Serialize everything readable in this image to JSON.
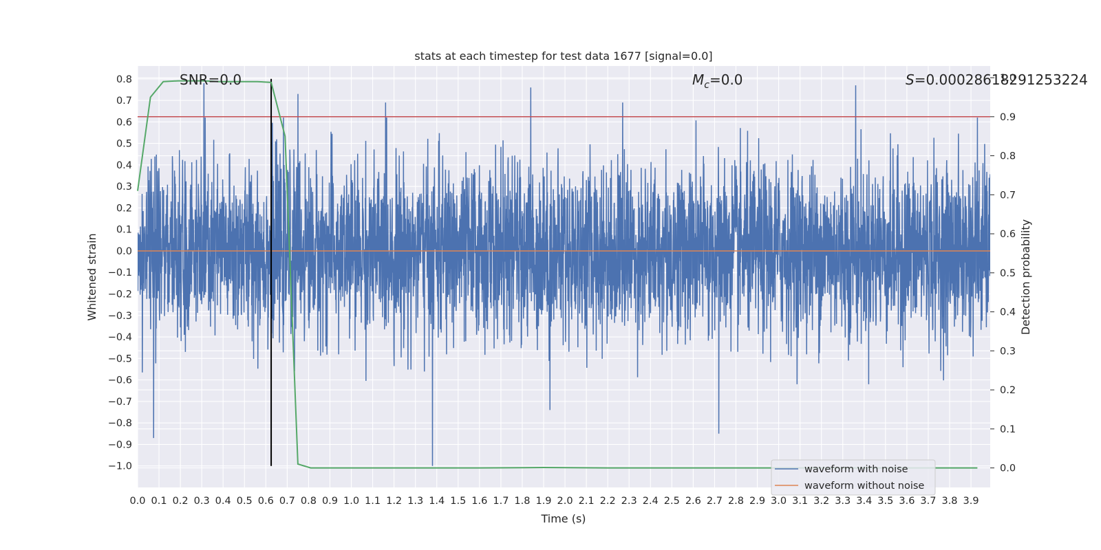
{
  "chart_data": {
    "type": "line",
    "title": "stats at each timestep for test data 1677 [signal=0.0]",
    "xlabel": "Time (s)",
    "ylabel_left": "Whitened strain",
    "ylabel_right": "Detection probability",
    "xlim": [
      0.0,
      3.99
    ],
    "ylim_left": [
      -1.1,
      0.86
    ],
    "ylim_right": [
      -0.05,
      1.03
    ],
    "x_ticks": [
      "0.0",
      "0.1",
      "0.2",
      "0.3",
      "0.4",
      "0.5",
      "0.6",
      "0.7",
      "0.8",
      "0.9",
      "1.0",
      "1.1",
      "1.2",
      "1.3",
      "1.4",
      "1.5",
      "1.6",
      "1.7",
      "1.8",
      "1.9",
      "2.0",
      "2.1",
      "2.2",
      "2.3",
      "2.4",
      "2.5",
      "2.6",
      "2.7",
      "2.8",
      "2.9",
      "3.0",
      "3.1",
      "3.2",
      "3.3",
      "3.4",
      "3.5",
      "3.6",
      "3.7",
      "3.8",
      "3.9"
    ],
    "y_ticks_left": [
      "0.8",
      "0.7",
      "0.6",
      "0.5",
      "0.4",
      "0.3",
      "0.2",
      "0.1",
      "0.0",
      "−0.1",
      "−0.2",
      "−0.3",
      "−0.4",
      "−0.5",
      "−0.6",
      "−0.7",
      "−0.8",
      "−0.9",
      "−1.0"
    ],
    "y_ticks_right": [
      "1.0",
      "0.9",
      "0.8",
      "0.7",
      "0.6",
      "0.5",
      "0.4",
      "0.3",
      "0.2",
      "0.1",
      "0.0"
    ],
    "grid": true,
    "legend_position": "bottom-right",
    "annotations": {
      "snr": "SNR=0.0",
      "mc_symbol": "M",
      "mc_sub": "c",
      "mc_value": "=0.0",
      "s_symbol": "S",
      "s_value": "=0.00028618291253224"
    },
    "threshold_line": {
      "y_right": 0.9,
      "color": "#c44e52"
    },
    "vertical_marker": {
      "x": 0.625,
      "y_range_left": [
        -1.0,
        0.8
      ],
      "color": "#000000"
    },
    "series": [
      {
        "name": "waveform with noise",
        "color": "#4c72b0",
        "kind": "noise",
        "x_range": [
          0.0,
          3.99
        ],
        "approx_std": 0.2,
        "approx_peaks": [
          {
            "x": 0.075,
            "y": -0.87
          },
          {
            "x": 0.31,
            "y": 0.78
          },
          {
            "x": 0.75,
            "y": 0.73
          },
          {
            "x": 1.16,
            "y": 0.69
          },
          {
            "x": 1.38,
            "y": -1.0
          },
          {
            "x": 1.84,
            "y": 0.76
          },
          {
            "x": 1.93,
            "y": -0.74
          },
          {
            "x": 2.27,
            "y": 0.69
          },
          {
            "x": 2.72,
            "y": -0.85
          },
          {
            "x": 3.36,
            "y": 0.77
          },
          {
            "x": 3.93,
            "y": 0.62
          }
        ]
      },
      {
        "name": "waveform without noise",
        "color": "#dd8452",
        "x": [
          0.0,
          3.99
        ],
        "y": [
          0.0,
          0.0
        ]
      },
      {
        "name": "",
        "axis": "right",
        "color": "#55a868",
        "x": [
          0.0,
          0.06,
          0.12,
          0.19,
          0.25,
          0.31,
          0.38,
          0.44,
          0.5,
          0.56,
          0.625,
          0.69,
          0.75,
          0.81,
          0.9,
          1.0,
          1.3,
          1.6,
          1.9,
          2.2,
          2.5,
          2.8,
          3.1,
          3.4,
          3.7,
          3.93
        ],
        "y": [
          0.71,
          0.95,
          0.99,
          0.992,
          0.992,
          0.992,
          0.99,
          0.99,
          0.99,
          0.99,
          0.988,
          0.85,
          0.01,
          0.0,
          0.0,
          0.0,
          0.0,
          0.0,
          0.001,
          0.0,
          0.0,
          0.0,
          0.0,
          0.0,
          0.0,
          0.0
        ]
      }
    ]
  }
}
